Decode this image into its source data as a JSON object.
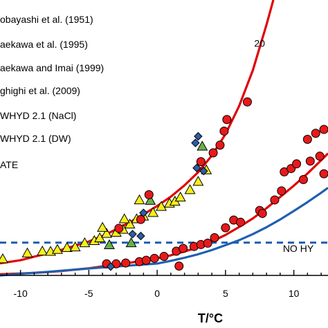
{
  "chart_data": {
    "type": "scatter",
    "xlabel": "T/°C",
    "xlim": [
      -11.5,
      12.5
    ],
    "ylim": [
      0,
      100
    ],
    "xticks": [
      -10,
      -5,
      0,
      5,
      10
    ],
    "xtick_labels": [
      "-10",
      "-5",
      "0",
      "5",
      "10"
    ],
    "legend": [
      {
        "label": "obayashi et al. (1951)"
      },
      {
        "label": "aekawa et al. (1995)"
      },
      {
        "label": "aekawa and Imai (1999)"
      },
      {
        "label": "ghighi et al. (2009)"
      },
      {
        "label": "WHYD 2.1 (NaCl)"
      },
      {
        "label": "WHYD 2.1 (DW)"
      },
      {
        "label": "ATE"
      }
    ],
    "annotations": [
      {
        "text": "20",
        "x": 7.1,
        "y": 83
      },
      {
        "text": "NO HY",
        "x": 9.2,
        "y": 8.6
      }
    ],
    "colors": {
      "red_curve": "#e00000",
      "blue_curve": "#1f5fb0",
      "no_hydrate_line": "#1f5fb0",
      "circle": "#e8191a",
      "triangle": "#f6ee1b",
      "triangle_green": "#6ab04c",
      "diamond": "#2c5ea8"
    },
    "series": [
      {
        "marker": "triangle",
        "color": "#f6ee1b",
        "points": [
          [
            -11.3,
            5.9
          ],
          [
            -9.5,
            8.0
          ],
          [
            -8.4,
            8.7
          ],
          [
            -7.8,
            8.6
          ],
          [
            -7.3,
            9.3
          ],
          [
            -6.6,
            10.0
          ],
          [
            -6.0,
            10.2
          ],
          [
            -5.3,
            11.7
          ],
          [
            -4.6,
            12.5
          ],
          [
            -4.2,
            13.5
          ],
          [
            -3.7,
            15.1
          ],
          [
            -3.0,
            15.5
          ],
          [
            -2.5,
            16.6
          ],
          [
            -2.0,
            18.5
          ],
          [
            -1.5,
            20.4
          ],
          [
            -1.0,
            21.4
          ],
          [
            -0.3,
            22.7
          ],
          [
            0.3,
            24.9
          ],
          [
            0.9,
            26.1
          ],
          [
            1.3,
            26.8
          ],
          [
            1.7,
            28.3
          ],
          [
            2.4,
            31.0
          ],
          [
            3.0,
            34.0
          ],
          [
            3.6,
            38.2
          ],
          [
            -2.4,
            20.4
          ],
          [
            -4.0,
            17.3
          ],
          [
            -1.3,
            27.3
          ]
        ]
      },
      {
        "marker": "triangle",
        "color": "#6ab04c",
        "points": [
          [
            -0.5,
            27.1
          ],
          [
            3.3,
            46.8
          ],
          [
            -3.5,
            11.0
          ],
          [
            -1.9,
            11.7
          ]
        ]
      },
      {
        "marker": "circle",
        "color": "#e8191a",
        "points": [
          [
            -2.8,
            17.1
          ],
          [
            -1.2,
            20.3
          ],
          [
            3.2,
            41.3
          ],
          [
            4.1,
            44.5
          ],
          [
            4.6,
            47.3
          ],
          [
            4.9,
            52.4
          ],
          [
            5.1,
            56.6
          ],
          [
            6.6,
            63.0
          ],
          [
            -3.7,
            4.2
          ],
          [
            -3.0,
            4.2
          ],
          [
            -2.3,
            4.5
          ],
          [
            -1.3,
            5.0
          ],
          [
            -0.8,
            5.5
          ],
          [
            -0.2,
            6.2
          ],
          [
            0.5,
            6.9
          ],
          [
            1.4,
            8.8
          ],
          [
            1.9,
            9.8
          ],
          [
            2.7,
            10.5
          ],
          [
            3.2,
            11.2
          ],
          [
            3.7,
            11.7
          ],
          [
            4.2,
            13.7
          ],
          [
            5.0,
            17.3
          ],
          [
            5.6,
            20.1
          ],
          [
            6.1,
            19.3
          ],
          [
            7.5,
            23.6
          ],
          [
            7.7,
            22.5
          ],
          [
            8.6,
            27.4
          ],
          [
            9.1,
            30.7
          ],
          [
            10.7,
            34.8
          ],
          [
            12.2,
            36.9
          ],
          [
            11.2,
            41.5
          ],
          [
            11.9,
            43.3
          ],
          [
            11.0,
            49.4
          ],
          [
            11.6,
            51.6
          ],
          [
            12.2,
            53.0
          ],
          [
            9.3,
            37.6
          ],
          [
            9.8,
            38.8
          ],
          [
            10.2,
            40.5
          ],
          [
            -0.6,
            29.3
          ],
          [
            1.6,
            3.4
          ]
        ]
      },
      {
        "marker": "diamond",
        "color": "#2c5ea8",
        "points": [
          [
            -1.2,
            14.3
          ],
          [
            -1.8,
            15.0
          ],
          [
            -1.0,
            22.7
          ],
          [
            2.8,
            48.1
          ],
          [
            3.0,
            50.5
          ],
          [
            2.9,
            39.0
          ],
          [
            3.4,
            37.9
          ],
          [
            -3.4,
            3.2
          ]
        ]
      }
    ],
    "curves": [
      {
        "color": "#e00000",
        "label": "20",
        "points": [
          [
            -11.5,
            4.4
          ],
          [
            -10,
            5.5
          ],
          [
            -9,
            6.8
          ],
          [
            -8,
            8.0
          ],
          [
            -7,
            9.3
          ],
          [
            -6,
            10.8
          ],
          [
            -5,
            12.3
          ],
          [
            -4,
            14.3
          ],
          [
            -3,
            16.7
          ],
          [
            -2,
            19.3
          ],
          [
            -1,
            22.2
          ],
          [
            0,
            25.2
          ],
          [
            1,
            28.6
          ],
          [
            2,
            32.7
          ],
          [
            3,
            37.5
          ],
          [
            4,
            43.5
          ],
          [
            5,
            51.3
          ],
          [
            6,
            61.5
          ],
          [
            7,
            74.5
          ],
          [
            8,
            91.0
          ],
          [
            8.5,
            100
          ]
        ]
      },
      {
        "color": "#e00000",
        "points": [
          [
            -11.5,
            0.4
          ],
          [
            -10,
            0.7
          ],
          [
            -9,
            0.9
          ],
          [
            -8,
            1.2
          ],
          [
            -7,
            1.6
          ],
          [
            -6,
            2.1
          ],
          [
            -5,
            2.6
          ],
          [
            -4,
            3.3
          ],
          [
            -3,
            3.9
          ],
          [
            -2,
            4.6
          ],
          [
            -1,
            5.4
          ],
          [
            0,
            6.2
          ],
          [
            1,
            7.3
          ],
          [
            2,
            8.7
          ],
          [
            3,
            10.2
          ],
          [
            4,
            12.3
          ],
          [
            5,
            14.7
          ],
          [
            6,
            17.6
          ],
          [
            7,
            20.7
          ],
          [
            8,
            24.4
          ],
          [
            9,
            28.5
          ],
          [
            10,
            32.6
          ],
          [
            11,
            37.0
          ],
          [
            12,
            41.8
          ],
          [
            12.5,
            44.3
          ]
        ]
      },
      {
        "color": "#1f5fb0",
        "points": [
          [
            -11.5,
            0.0
          ],
          [
            -10,
            0.6
          ],
          [
            -8,
            1.3
          ],
          [
            -6,
            2.1
          ],
          [
            -4,
            2.9
          ],
          [
            -2,
            3.6
          ],
          [
            0,
            4.3
          ],
          [
            1,
            5.3
          ],
          [
            2,
            6.4
          ],
          [
            3,
            7.7
          ],
          [
            4,
            9.2
          ],
          [
            5,
            11.0
          ],
          [
            6,
            12.8
          ],
          [
            7,
            15.0
          ],
          [
            8,
            17.5
          ],
          [
            9,
            20.3
          ],
          [
            10,
            23.4
          ],
          [
            11,
            26.6
          ],
          [
            12,
            30.0
          ],
          [
            12.5,
            31.8
          ]
        ]
      }
    ],
    "no_hydrate_line_y": 11.9
  }
}
